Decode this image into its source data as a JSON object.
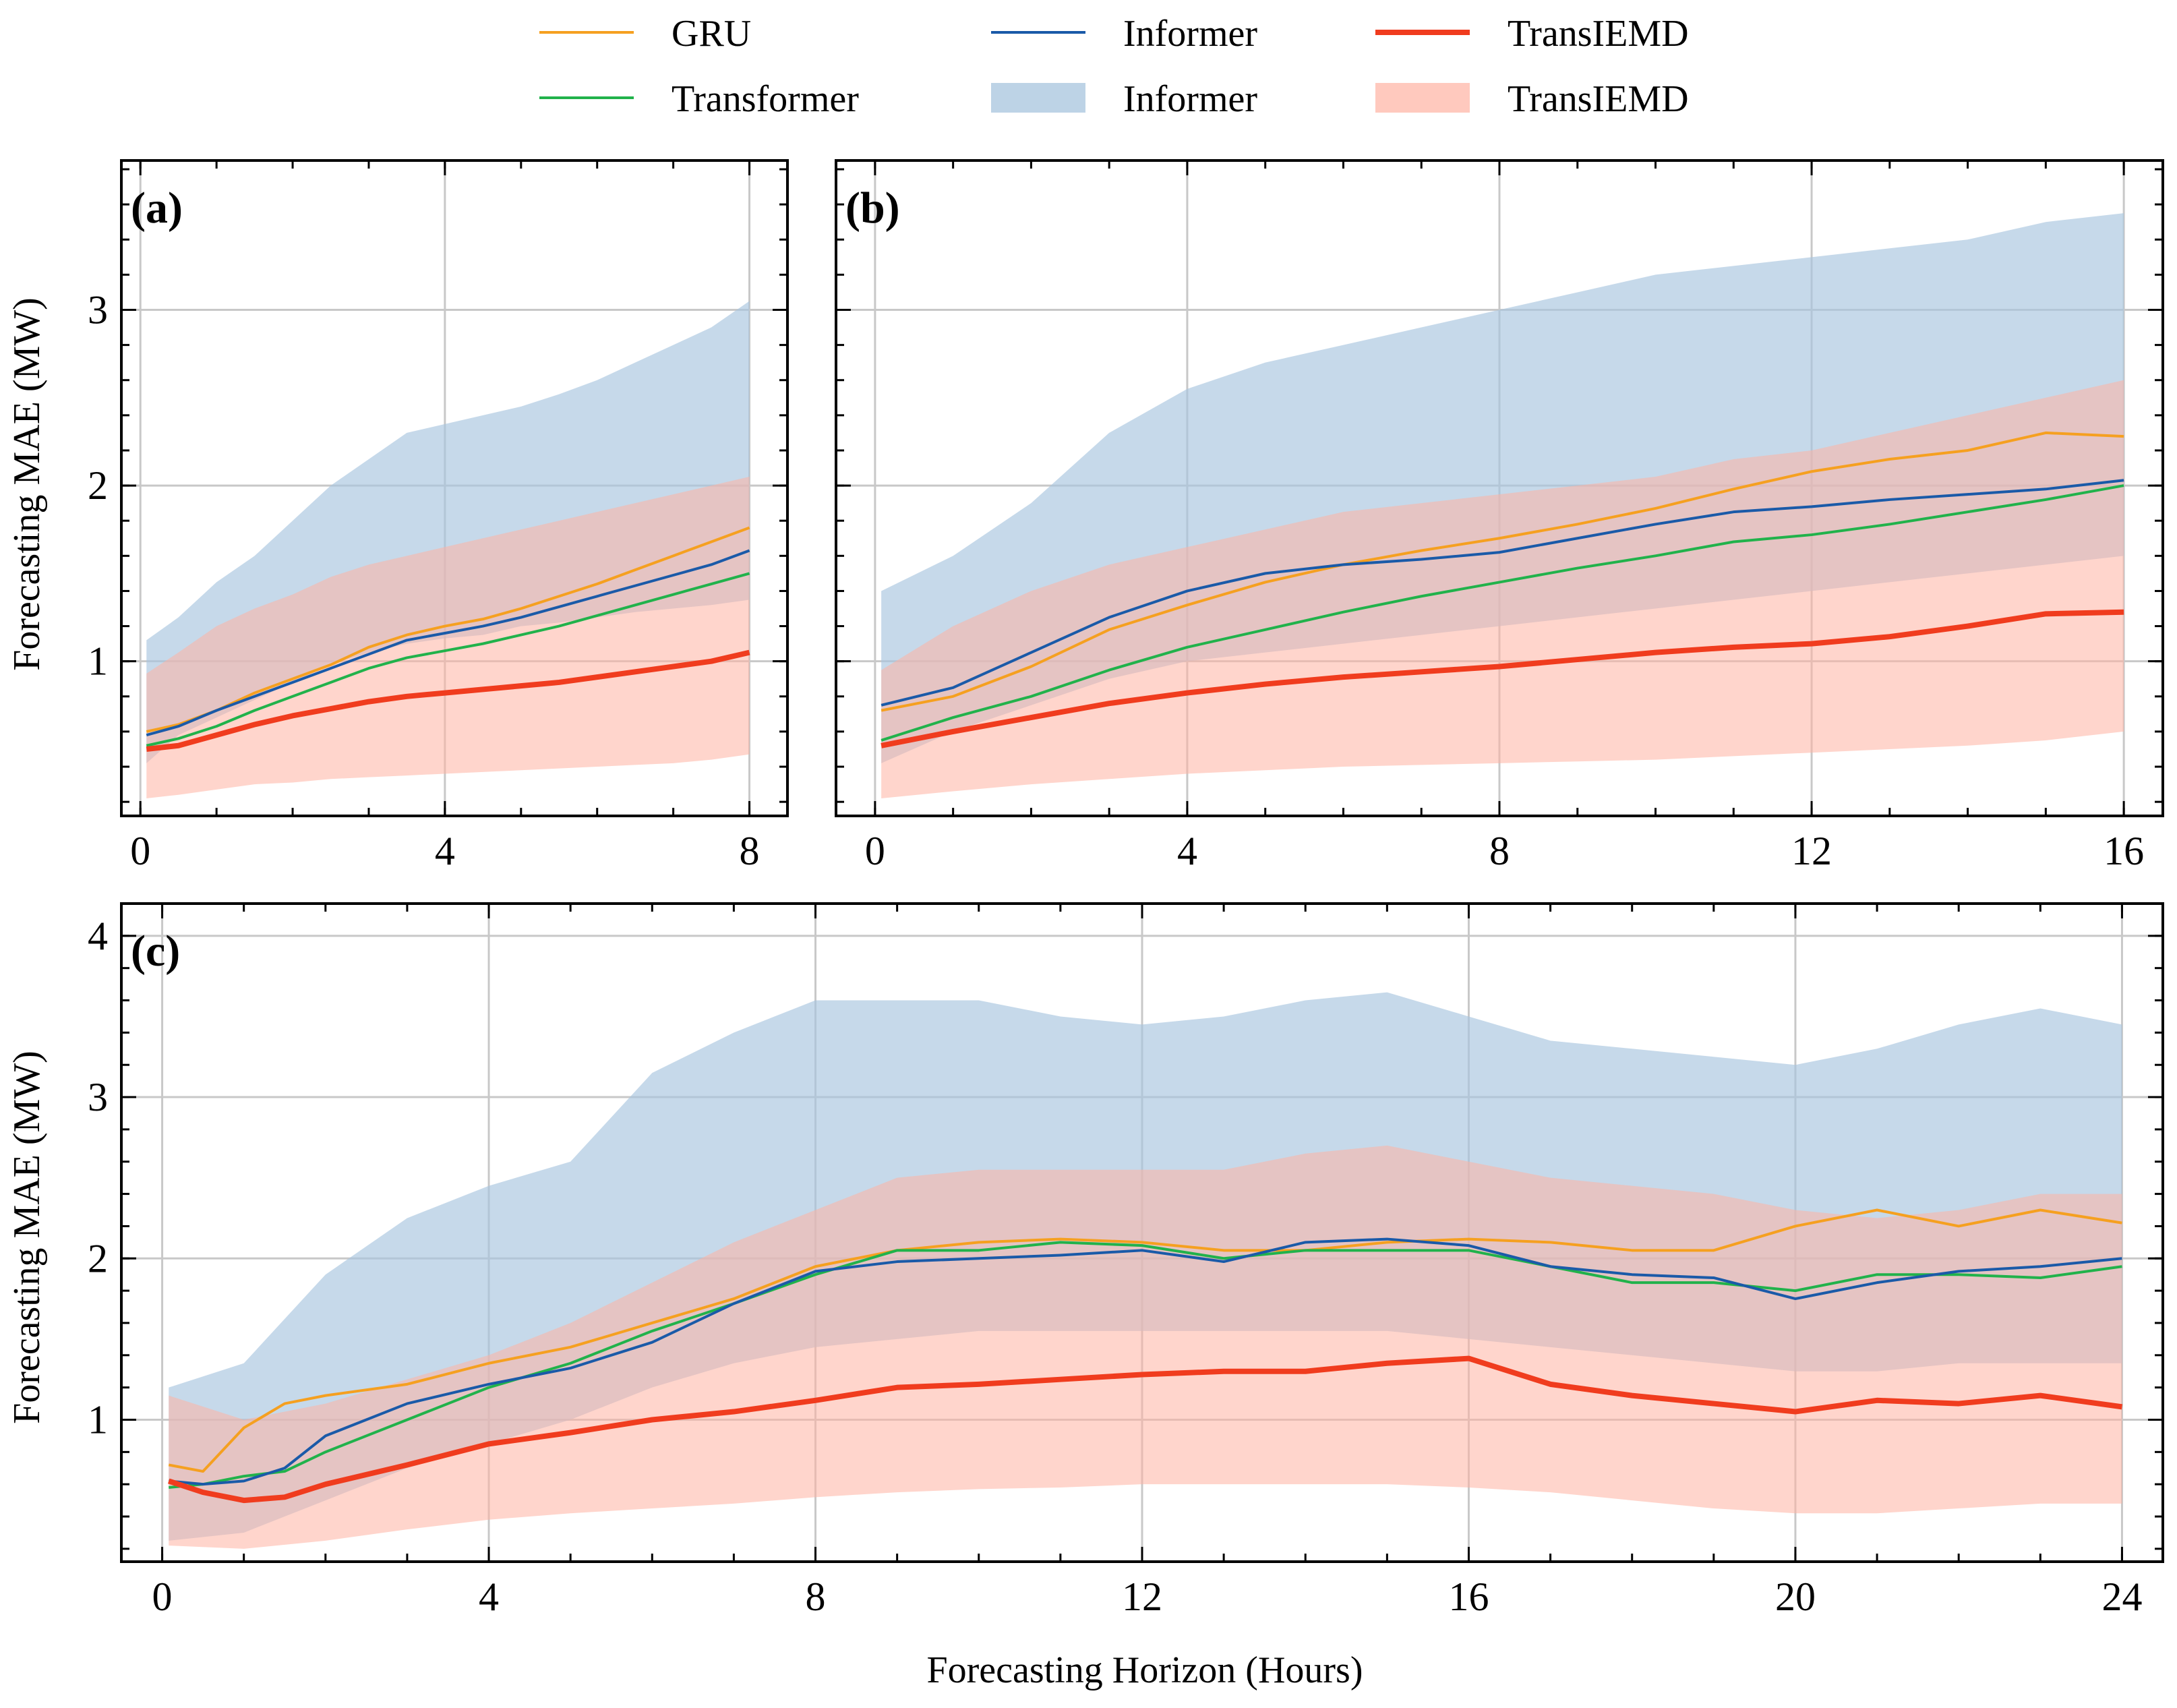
{
  "figure": {
    "ylabel": "Forecasting MAE (MW)",
    "xlabel": "Forecasting Horizon (Hours)",
    "colors": {
      "gru": "#f5a020",
      "transformer": "#21b24b",
      "informer": "#1a5aa8",
      "informer_band": "#a7c4de",
      "transiemd": "#f03c1e",
      "transiemd_band": "#ffb2a3"
    }
  },
  "legend": {
    "items": [
      {
        "label": "GRU",
        "kind": "line",
        "series": "gru"
      },
      {
        "label": "Transformer",
        "kind": "line",
        "series": "transformer"
      },
      {
        "label": "Informer",
        "kind": "line",
        "series": "informer"
      },
      {
        "label": "Informer",
        "kind": "band",
        "series": "informer_band"
      },
      {
        "label": "TransIEMD",
        "kind": "line-thick",
        "series": "transiemd"
      },
      {
        "label": "TransIEMD",
        "kind": "band",
        "series": "transiemd_band"
      }
    ]
  },
  "chart_data": [
    {
      "type": "line",
      "panel": "(a)",
      "xlim": [
        -0.25,
        8.5
      ],
      "ylim": [
        0.12,
        3.85
      ],
      "xticks": [
        0,
        4,
        8
      ],
      "yticks": [
        1,
        2,
        3
      ],
      "xlabel": "",
      "ylabel": "Forecasting MAE (MW)",
      "grid": true,
      "series": [
        {
          "name": "Informer band",
          "key": "informer_band",
          "kind": "band",
          "x": [
            0.08,
            0.5,
            1,
            1.5,
            2,
            2.5,
            3,
            3.5,
            4,
            4.5,
            5,
            5.5,
            6,
            6.5,
            7,
            7.5,
            8
          ],
          "lower": [
            0.42,
            0.58,
            0.68,
            0.78,
            0.88,
            0.98,
            1.05,
            1.1,
            1.13,
            1.15,
            1.2,
            1.22,
            1.25,
            1.28,
            1.3,
            1.32,
            1.35
          ],
          "upper": [
            1.12,
            1.25,
            1.45,
            1.6,
            1.8,
            2.0,
            2.15,
            2.3,
            2.35,
            2.4,
            2.45,
            2.52,
            2.6,
            2.7,
            2.8,
            2.9,
            3.05
          ]
        },
        {
          "name": "TransIEMD band",
          "key": "transiemd_band",
          "kind": "band",
          "x": [
            0.08,
            0.5,
            1,
            1.5,
            2,
            2.5,
            3,
            3.5,
            4,
            4.5,
            5,
            5.5,
            6,
            6.5,
            7,
            7.5,
            8
          ],
          "lower": [
            0.22,
            0.24,
            0.27,
            0.3,
            0.31,
            0.33,
            0.34,
            0.35,
            0.36,
            0.37,
            0.38,
            0.39,
            0.4,
            0.41,
            0.42,
            0.44,
            0.47
          ],
          "upper": [
            0.93,
            1.05,
            1.2,
            1.3,
            1.38,
            1.48,
            1.55,
            1.6,
            1.65,
            1.7,
            1.75,
            1.8,
            1.85,
            1.9,
            1.95,
            2.0,
            2.05
          ]
        },
        {
          "name": "GRU",
          "key": "gru",
          "kind": "line",
          "x": [
            0.08,
            0.5,
            1,
            1.5,
            2,
            2.5,
            3,
            3.5,
            4,
            4.5,
            5,
            5.5,
            6,
            6.5,
            7,
            7.5,
            8
          ],
          "y": [
            0.6,
            0.64,
            0.72,
            0.82,
            0.9,
            0.98,
            1.08,
            1.15,
            1.2,
            1.24,
            1.3,
            1.37,
            1.44,
            1.52,
            1.6,
            1.68,
            1.76
          ]
        },
        {
          "name": "Transformer",
          "key": "transformer",
          "kind": "line",
          "x": [
            0.08,
            0.5,
            1,
            1.5,
            2,
            2.5,
            3,
            3.5,
            4,
            4.5,
            5,
            5.5,
            6,
            6.5,
            7,
            7.5,
            8
          ],
          "y": [
            0.52,
            0.56,
            0.63,
            0.72,
            0.8,
            0.88,
            0.96,
            1.02,
            1.06,
            1.1,
            1.15,
            1.2,
            1.26,
            1.32,
            1.38,
            1.44,
            1.5
          ]
        },
        {
          "name": "Informer",
          "key": "informer",
          "kind": "line",
          "x": [
            0.08,
            0.5,
            1,
            1.5,
            2,
            2.5,
            3,
            3.5,
            4,
            4.5,
            5,
            5.5,
            6,
            6.5,
            7,
            7.5,
            8
          ],
          "y": [
            0.58,
            0.63,
            0.72,
            0.8,
            0.88,
            0.96,
            1.04,
            1.12,
            1.16,
            1.2,
            1.25,
            1.31,
            1.37,
            1.43,
            1.49,
            1.55,
            1.63
          ]
        },
        {
          "name": "TransIEMD",
          "key": "transiemd",
          "kind": "line-thick",
          "x": [
            0.08,
            0.5,
            1,
            1.5,
            2,
            2.5,
            3,
            3.5,
            4,
            4.5,
            5,
            5.5,
            6,
            6.5,
            7,
            7.5,
            8
          ],
          "y": [
            0.5,
            0.52,
            0.58,
            0.64,
            0.69,
            0.73,
            0.77,
            0.8,
            0.82,
            0.84,
            0.86,
            0.88,
            0.91,
            0.94,
            0.97,
            1.0,
            1.05
          ]
        }
      ]
    },
    {
      "type": "line",
      "panel": "(b)",
      "xlim": [
        -0.5,
        16.5
      ],
      "ylim": [
        0.12,
        3.85
      ],
      "xticks": [
        0,
        4,
        8,
        12,
        16
      ],
      "yticks": [
        1,
        2,
        3
      ],
      "xlabel": "",
      "ylabel": "",
      "grid": true,
      "series": [
        {
          "name": "Informer band",
          "key": "informer_band",
          "kind": "band",
          "x": [
            0.08,
            1,
            2,
            3,
            4,
            5,
            6,
            7,
            8,
            9,
            10,
            11,
            12,
            13,
            14,
            15,
            16
          ],
          "lower": [
            0.42,
            0.6,
            0.75,
            0.9,
            1.0,
            1.05,
            1.1,
            1.15,
            1.2,
            1.25,
            1.3,
            1.35,
            1.4,
            1.45,
            1.5,
            1.55,
            1.6
          ],
          "upper": [
            1.4,
            1.6,
            1.9,
            2.3,
            2.55,
            2.7,
            2.8,
            2.9,
            3.0,
            3.1,
            3.2,
            3.25,
            3.3,
            3.35,
            3.4,
            3.5,
            3.55
          ]
        },
        {
          "name": "TransIEMD band",
          "key": "transiemd_band",
          "kind": "band",
          "x": [
            0.08,
            1,
            2,
            3,
            4,
            5,
            6,
            7,
            8,
            9,
            10,
            11,
            12,
            13,
            14,
            15,
            16
          ],
          "lower": [
            0.22,
            0.26,
            0.3,
            0.33,
            0.36,
            0.38,
            0.4,
            0.41,
            0.42,
            0.43,
            0.44,
            0.46,
            0.48,
            0.5,
            0.52,
            0.55,
            0.6
          ],
          "upper": [
            0.95,
            1.2,
            1.4,
            1.55,
            1.65,
            1.75,
            1.85,
            1.9,
            1.95,
            2.0,
            2.05,
            2.15,
            2.2,
            2.3,
            2.4,
            2.5,
            2.6
          ]
        },
        {
          "name": "GRU",
          "key": "gru",
          "kind": "line",
          "x": [
            0.08,
            1,
            2,
            3,
            4,
            5,
            6,
            7,
            8,
            9,
            10,
            11,
            12,
            13,
            14,
            15,
            16
          ],
          "y": [
            0.72,
            0.8,
            0.97,
            1.18,
            1.32,
            1.45,
            1.55,
            1.63,
            1.7,
            1.78,
            1.87,
            1.98,
            2.08,
            2.15,
            2.2,
            2.3,
            2.28
          ]
        },
        {
          "name": "Transformer",
          "key": "transformer",
          "kind": "line",
          "x": [
            0.08,
            1,
            2,
            3,
            4,
            5,
            6,
            7,
            8,
            9,
            10,
            11,
            12,
            13,
            14,
            15,
            16
          ],
          "y": [
            0.55,
            0.68,
            0.8,
            0.95,
            1.08,
            1.18,
            1.28,
            1.37,
            1.45,
            1.53,
            1.6,
            1.68,
            1.72,
            1.78,
            1.85,
            1.92,
            2.0
          ]
        },
        {
          "name": "Informer",
          "key": "informer",
          "kind": "line",
          "x": [
            0.08,
            1,
            2,
            3,
            4,
            5,
            6,
            7,
            8,
            9,
            10,
            11,
            12,
            13,
            14,
            15,
            16
          ],
          "y": [
            0.75,
            0.85,
            1.05,
            1.25,
            1.4,
            1.5,
            1.55,
            1.58,
            1.62,
            1.7,
            1.78,
            1.85,
            1.88,
            1.92,
            1.95,
            1.98,
            2.03
          ]
        },
        {
          "name": "TransIEMD",
          "key": "transiemd",
          "kind": "line-thick",
          "x": [
            0.08,
            1,
            2,
            3,
            4,
            5,
            6,
            7,
            8,
            9,
            10,
            11,
            12,
            13,
            14,
            15,
            16
          ],
          "y": [
            0.52,
            0.6,
            0.68,
            0.76,
            0.82,
            0.87,
            0.91,
            0.94,
            0.97,
            1.01,
            1.05,
            1.08,
            1.1,
            1.14,
            1.2,
            1.27,
            1.28
          ]
        }
      ]
    },
    {
      "type": "line",
      "panel": "(c)",
      "xlim": [
        -0.5,
        24.5
      ],
      "ylim": [
        0.12,
        4.2
      ],
      "xticks": [
        0,
        4,
        8,
        12,
        16,
        20,
        24
      ],
      "yticks": [
        1,
        2,
        3,
        4
      ],
      "xlabel": "Forecasting Horizon (Hours)",
      "ylabel": "Forecasting MAE (MW)",
      "grid": true,
      "series": [
        {
          "name": "Informer band",
          "key": "informer_band",
          "kind": "band",
          "x": [
            0.08,
            1,
            2,
            3,
            4,
            5,
            6,
            7,
            8,
            9,
            10,
            11,
            12,
            13,
            14,
            15,
            16,
            17,
            18,
            19,
            20,
            21,
            22,
            23,
            24
          ],
          "lower": [
            0.25,
            0.3,
            0.5,
            0.7,
            0.85,
            1.0,
            1.2,
            1.35,
            1.45,
            1.5,
            1.55,
            1.55,
            1.55,
            1.55,
            1.55,
            1.55,
            1.5,
            1.45,
            1.4,
            1.35,
            1.3,
            1.3,
            1.35,
            1.35,
            1.35
          ],
          "upper": [
            1.2,
            1.35,
            1.9,
            2.25,
            2.45,
            2.6,
            3.15,
            3.4,
            3.6,
            3.6,
            3.6,
            3.5,
            3.45,
            3.5,
            3.6,
            3.65,
            3.5,
            3.35,
            3.3,
            3.25,
            3.2,
            3.3,
            3.45,
            3.55,
            3.45
          ]
        },
        {
          "name": "TransIEMD band",
          "key": "transiemd_band",
          "kind": "band",
          "x": [
            0.08,
            1,
            2,
            3,
            4,
            5,
            6,
            7,
            8,
            9,
            10,
            11,
            12,
            13,
            14,
            15,
            16,
            17,
            18,
            19,
            20,
            21,
            22,
            23,
            24
          ],
          "lower": [
            0.22,
            0.2,
            0.25,
            0.32,
            0.38,
            0.42,
            0.45,
            0.48,
            0.52,
            0.55,
            0.57,
            0.58,
            0.6,
            0.6,
            0.6,
            0.6,
            0.58,
            0.55,
            0.5,
            0.45,
            0.42,
            0.42,
            0.45,
            0.48,
            0.48
          ],
          "upper": [
            1.15,
            1.0,
            1.1,
            1.25,
            1.4,
            1.6,
            1.85,
            2.1,
            2.3,
            2.5,
            2.55,
            2.55,
            2.55,
            2.55,
            2.65,
            2.7,
            2.6,
            2.5,
            2.45,
            2.4,
            2.3,
            2.25,
            2.3,
            2.4,
            2.4
          ]
        },
        {
          "name": "GRU",
          "key": "gru",
          "kind": "line",
          "x": [
            0.08,
            0.5,
            1,
            1.5,
            2,
            3,
            4,
            5,
            6,
            7,
            8,
            9,
            10,
            11,
            12,
            13,
            14,
            15,
            16,
            17,
            18,
            19,
            20,
            21,
            22,
            23,
            24
          ],
          "y": [
            0.72,
            0.68,
            0.95,
            1.1,
            1.15,
            1.22,
            1.35,
            1.45,
            1.6,
            1.75,
            1.95,
            2.05,
            2.1,
            2.12,
            2.1,
            2.05,
            2.05,
            2.1,
            2.12,
            2.1,
            2.05,
            2.05,
            2.2,
            2.3,
            2.2,
            2.3,
            2.22
          ]
        },
        {
          "name": "Transformer",
          "key": "transformer",
          "kind": "line",
          "x": [
            0.08,
            0.5,
            1,
            1.5,
            2,
            3,
            4,
            5,
            6,
            7,
            8,
            9,
            10,
            11,
            12,
            13,
            14,
            15,
            16,
            17,
            18,
            19,
            20,
            21,
            22,
            23,
            24
          ],
          "y": [
            0.58,
            0.6,
            0.65,
            0.68,
            0.8,
            1.0,
            1.2,
            1.35,
            1.55,
            1.72,
            1.9,
            2.05,
            2.05,
            2.1,
            2.08,
            2.0,
            2.05,
            2.05,
            2.05,
            1.95,
            1.85,
            1.85,
            1.8,
            1.9,
            1.9,
            1.88,
            1.95
          ]
        },
        {
          "name": "Informer",
          "key": "informer",
          "kind": "line",
          "x": [
            0.08,
            0.5,
            1,
            1.5,
            2,
            3,
            4,
            5,
            6,
            7,
            8,
            9,
            10,
            11,
            12,
            13,
            14,
            15,
            16,
            17,
            18,
            19,
            20,
            21,
            22,
            23,
            24
          ],
          "y": [
            0.62,
            0.6,
            0.62,
            0.7,
            0.9,
            1.1,
            1.22,
            1.32,
            1.48,
            1.72,
            1.92,
            1.98,
            2.0,
            2.02,
            2.05,
            1.98,
            2.1,
            2.12,
            2.08,
            1.95,
            1.9,
            1.88,
            1.75,
            1.85,
            1.92,
            1.95,
            2.0
          ]
        },
        {
          "name": "TransIEMD",
          "key": "transiemd",
          "kind": "line-thick",
          "x": [
            0.08,
            0.5,
            1,
            1.5,
            2,
            3,
            4,
            5,
            6,
            7,
            8,
            9,
            10,
            11,
            12,
            13,
            14,
            15,
            16,
            17,
            18,
            19,
            20,
            21,
            22,
            23,
            24
          ],
          "y": [
            0.62,
            0.55,
            0.5,
            0.52,
            0.6,
            0.72,
            0.85,
            0.92,
            1.0,
            1.05,
            1.12,
            1.2,
            1.22,
            1.25,
            1.28,
            1.3,
            1.3,
            1.35,
            1.38,
            1.22,
            1.15,
            1.1,
            1.05,
            1.12,
            1.1,
            1.15,
            1.08
          ]
        }
      ]
    }
  ]
}
